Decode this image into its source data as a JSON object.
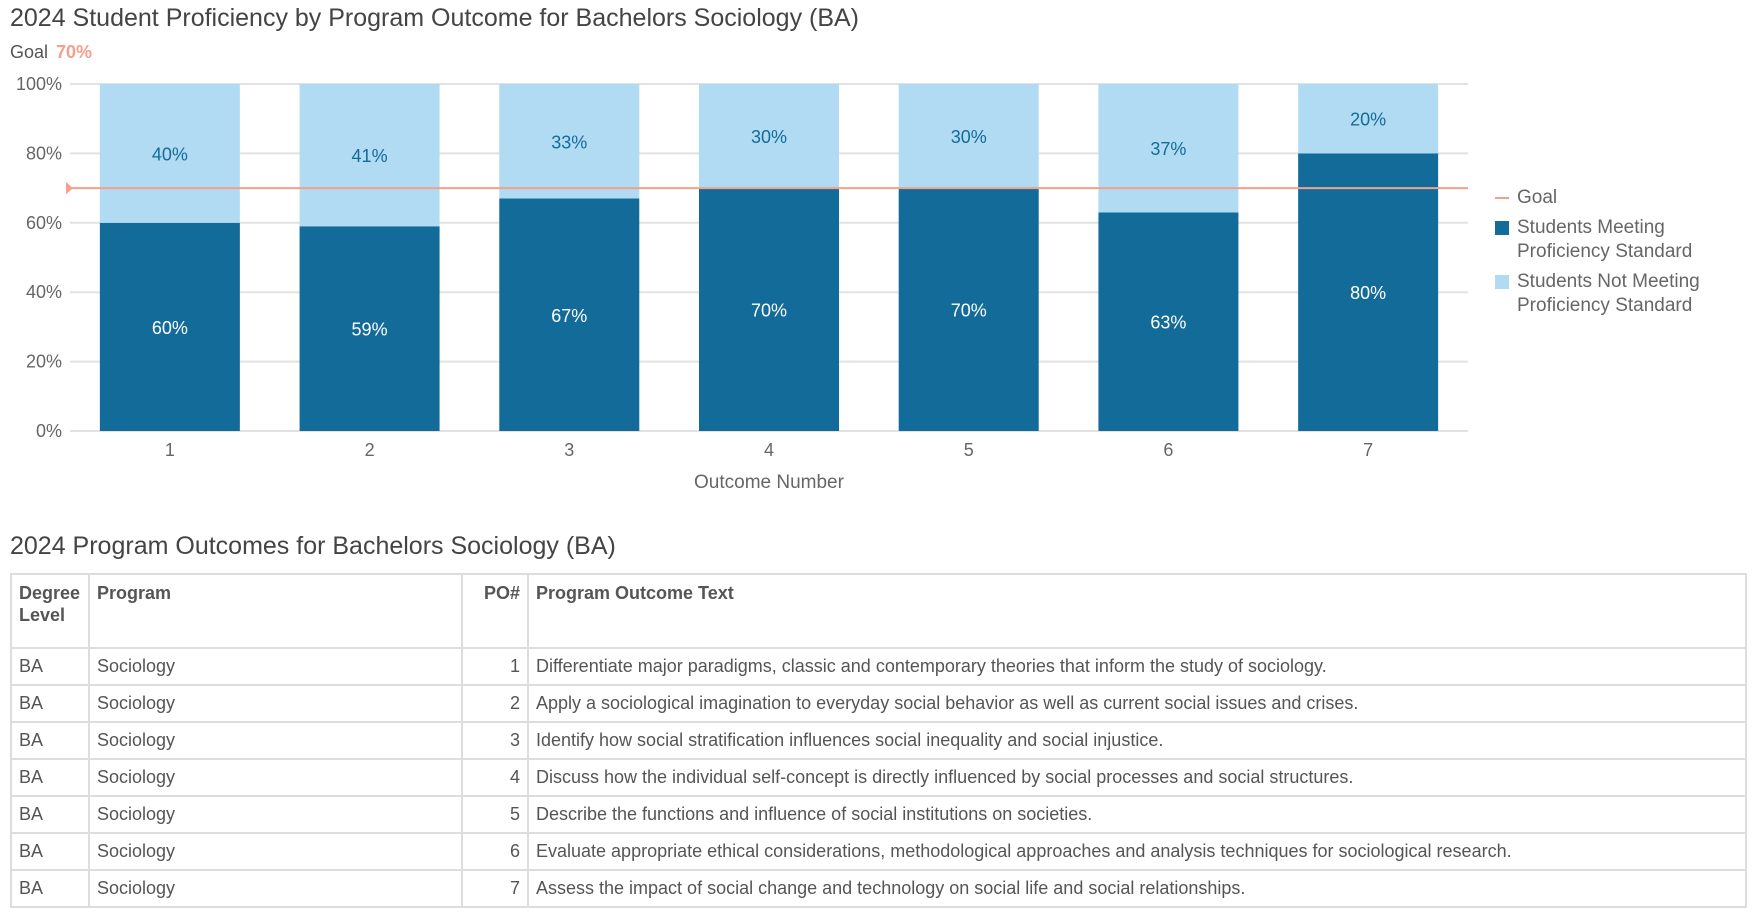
{
  "title": "2024 Student Proficiency by Program Outcome for Bachelors Sociology (BA)",
  "goal_note": {
    "label": "Goal",
    "value": "70%"
  },
  "chart_data": {
    "type": "bar",
    "stacked": true,
    "categories": [
      "1",
      "2",
      "3",
      "4",
      "5",
      "6",
      "7"
    ],
    "xlabel": "Outcome Number",
    "ylabel": "",
    "ylim": [
      0,
      100
    ],
    "yticks": [
      "0%",
      "20%",
      "40%",
      "60%",
      "80%",
      "100%"
    ],
    "grid": true,
    "legend_position": "right",
    "goal": {
      "name": "Goal",
      "value": 70,
      "color": "#f4a08a"
    },
    "series": [
      {
        "name": "Students Meeting Proficiency Standard",
        "values": [
          60,
          59,
          67,
          70,
          70,
          63,
          80
        ],
        "labels": [
          "60%",
          "59%",
          "67%",
          "70%",
          "70%",
          "63%",
          "80%"
        ],
        "color": "#136b99"
      },
      {
        "name": "Students Not Meeting Proficiency Standard",
        "values": [
          40,
          41,
          33,
          30,
          30,
          37,
          20
        ],
        "labels": [
          "40%",
          "41%",
          "33%",
          "30%",
          "30%",
          "37%",
          "20%"
        ],
        "color": "#b1dbf3"
      }
    ]
  },
  "table": {
    "title": "2024 Program Outcomes for Bachelors Sociology (BA)",
    "headers": [
      "Degree Level",
      "Program",
      "PO#",
      "Program Outcome Text"
    ],
    "rows": [
      [
        "BA",
        "Sociology",
        "1",
        "Differentiate major paradigms, classic and contemporary theories that inform the study of sociology."
      ],
      [
        "BA",
        "Sociology",
        "2",
        "Apply a sociological imagination to everyday social behavior as well as current social issues and crises."
      ],
      [
        "BA",
        "Sociology",
        "3",
        "Identify how social stratification influences social inequality and social injustice."
      ],
      [
        "BA",
        "Sociology",
        "4",
        "Discuss how the individual self-concept is directly influenced by social processes and social structures."
      ],
      [
        "BA",
        "Sociology",
        "5",
        "Describe the functions and influence of social institutions on societies."
      ],
      [
        "BA",
        "Sociology",
        "6",
        "Evaluate appropriate ethical considerations, methodological approaches and analysis techniques for sociological research."
      ],
      [
        "BA",
        "Sociology",
        "7",
        "Assess the impact of social change and technology on social life and social relationships."
      ]
    ]
  }
}
